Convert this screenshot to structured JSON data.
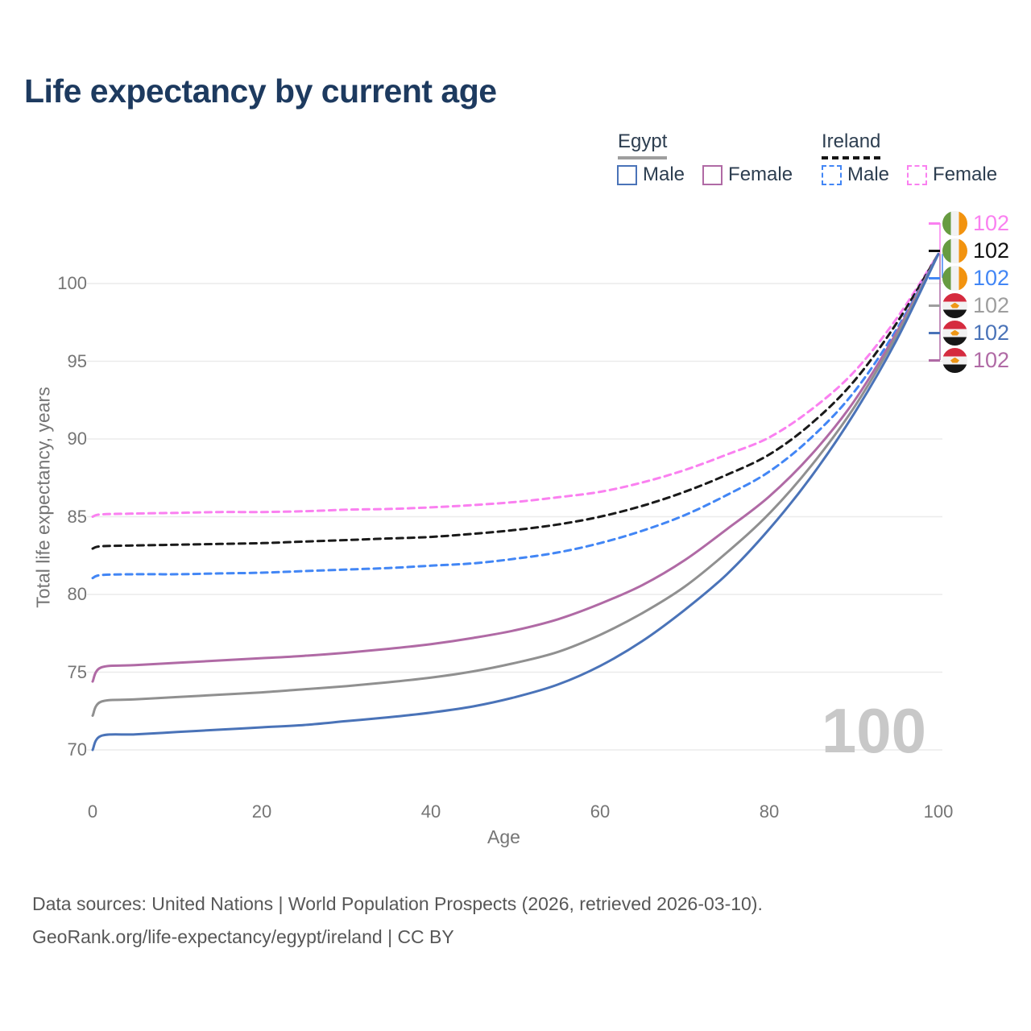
{
  "title": "Life expectancy by current age",
  "watermark": "100",
  "legend": {
    "groups": [
      {
        "country": "Egypt",
        "line_style": "solid",
        "underline_color": "#9e9e9e",
        "items": [
          {
            "label": "Male",
            "color": "#4a73b8"
          },
          {
            "label": "Female",
            "color": "#b06aa5"
          }
        ]
      },
      {
        "country": "Ireland",
        "line_style": "dashed",
        "underline_color": "#161616",
        "items": [
          {
            "label": "Male",
            "color": "#4286f5"
          },
          {
            "label": "Female",
            "color": "#fa80f0"
          }
        ]
      }
    ]
  },
  "chart_data": {
    "type": "line",
    "title": "Life expectancy by current age",
    "xlabel": "Age",
    "ylabel": "Total life expectancy, years",
    "x_ticks": [
      0,
      20,
      40,
      60,
      80,
      100
    ],
    "y_ticks": [
      70,
      75,
      80,
      85,
      90,
      95,
      100
    ],
    "xlim": [
      0,
      100
    ],
    "ylim": [
      68.5,
      103.5
    ],
    "grid": "horizontal",
    "legend_position": "top-right",
    "series": [
      {
        "id": "ireland_female",
        "name": "Ireland Female",
        "color": "#fa80f0",
        "dash": true,
        "points": [
          [
            0,
            85.0
          ],
          [
            1,
            85.15
          ],
          [
            5,
            85.2
          ],
          [
            10,
            85.25
          ],
          [
            15,
            85.3
          ],
          [
            20,
            85.3
          ],
          [
            25,
            85.35
          ],
          [
            30,
            85.45
          ],
          [
            35,
            85.5
          ],
          [
            40,
            85.6
          ],
          [
            45,
            85.75
          ],
          [
            50,
            85.95
          ],
          [
            55,
            86.25
          ],
          [
            60,
            86.6
          ],
          [
            65,
            87.2
          ],
          [
            70,
            88.0
          ],
          [
            75,
            89.0
          ],
          [
            80,
            90.1
          ],
          [
            85,
            91.9
          ],
          [
            90,
            94.3
          ],
          [
            95,
            97.7
          ],
          [
            100,
            101.9
          ]
        ]
      },
      {
        "id": "ireland_both",
        "name": "Ireland Both sexes",
        "color": "#1a1a1a",
        "dash": true,
        "points": [
          [
            0,
            82.95
          ],
          [
            1,
            83.1
          ],
          [
            5,
            83.15
          ],
          [
            10,
            83.2
          ],
          [
            15,
            83.25
          ],
          [
            20,
            83.3
          ],
          [
            25,
            83.4
          ],
          [
            30,
            83.5
          ],
          [
            35,
            83.6
          ],
          [
            40,
            83.7
          ],
          [
            45,
            83.9
          ],
          [
            50,
            84.15
          ],
          [
            55,
            84.5
          ],
          [
            60,
            85.0
          ],
          [
            65,
            85.7
          ],
          [
            70,
            86.6
          ],
          [
            75,
            87.7
          ],
          [
            80,
            89.0
          ],
          [
            85,
            91.0
          ],
          [
            90,
            93.7
          ],
          [
            95,
            97.4
          ],
          [
            100,
            101.9
          ]
        ]
      },
      {
        "id": "ireland_male",
        "name": "Ireland Male",
        "color": "#4286f5",
        "dash": true,
        "points": [
          [
            0,
            81.05
          ],
          [
            1,
            81.25
          ],
          [
            5,
            81.3
          ],
          [
            10,
            81.3
          ],
          [
            15,
            81.35
          ],
          [
            20,
            81.4
          ],
          [
            25,
            81.5
          ],
          [
            30,
            81.6
          ],
          [
            35,
            81.7
          ],
          [
            40,
            81.85
          ],
          [
            45,
            82.0
          ],
          [
            50,
            82.3
          ],
          [
            55,
            82.7
          ],
          [
            60,
            83.3
          ],
          [
            65,
            84.1
          ],
          [
            70,
            85.1
          ],
          [
            75,
            86.4
          ],
          [
            80,
            87.9
          ],
          [
            85,
            90.1
          ],
          [
            90,
            93.0
          ],
          [
            95,
            97.0
          ],
          [
            100,
            101.9
          ]
        ]
      },
      {
        "id": "egypt_female",
        "name": "Egypt Female",
        "color": "#b06aa5",
        "dash": false,
        "points": [
          [
            0,
            74.4
          ],
          [
            1,
            75.3
          ],
          [
            5,
            75.45
          ],
          [
            10,
            75.6
          ],
          [
            15,
            75.75
          ],
          [
            20,
            75.9
          ],
          [
            25,
            76.05
          ],
          [
            30,
            76.25
          ],
          [
            35,
            76.5
          ],
          [
            40,
            76.8
          ],
          [
            45,
            77.2
          ],
          [
            50,
            77.7
          ],
          [
            55,
            78.4
          ],
          [
            60,
            79.4
          ],
          [
            65,
            80.6
          ],
          [
            70,
            82.2
          ],
          [
            75,
            84.2
          ],
          [
            80,
            86.3
          ],
          [
            85,
            89.0
          ],
          [
            90,
            92.4
          ],
          [
            95,
            96.8
          ],
          [
            100,
            101.9
          ]
        ]
      },
      {
        "id": "egypt_both",
        "name": "Egypt Both sexes",
        "color": "#909090",
        "dash": false,
        "points": [
          [
            0,
            72.2
          ],
          [
            1,
            73.1
          ],
          [
            5,
            73.25
          ],
          [
            10,
            73.4
          ],
          [
            15,
            73.55
          ],
          [
            20,
            73.7
          ],
          [
            25,
            73.9
          ],
          [
            30,
            74.1
          ],
          [
            35,
            74.35
          ],
          [
            40,
            74.65
          ],
          [
            45,
            75.05
          ],
          [
            50,
            75.6
          ],
          [
            55,
            76.3
          ],
          [
            60,
            77.4
          ],
          [
            65,
            78.8
          ],
          [
            70,
            80.5
          ],
          [
            75,
            82.7
          ],
          [
            80,
            85.2
          ],
          [
            85,
            88.3
          ],
          [
            90,
            92.0
          ],
          [
            95,
            96.6
          ],
          [
            100,
            101.9
          ]
        ]
      },
      {
        "id": "egypt_male",
        "name": "Egypt Male",
        "color": "#4a73b8",
        "dash": false,
        "points": [
          [
            0,
            70.0
          ],
          [
            1,
            70.9
          ],
          [
            5,
            71.0
          ],
          [
            10,
            71.15
          ],
          [
            15,
            71.3
          ],
          [
            20,
            71.45
          ],
          [
            25,
            71.6
          ],
          [
            30,
            71.85
          ],
          [
            35,
            72.1
          ],
          [
            40,
            72.4
          ],
          [
            45,
            72.8
          ],
          [
            50,
            73.4
          ],
          [
            55,
            74.2
          ],
          [
            60,
            75.4
          ],
          [
            65,
            77.0
          ],
          [
            70,
            79.0
          ],
          [
            75,
            81.3
          ],
          [
            80,
            84.2
          ],
          [
            85,
            87.6
          ],
          [
            90,
            91.6
          ],
          [
            95,
            96.3
          ],
          [
            100,
            101.9
          ]
        ]
      }
    ],
    "end_labels": [
      {
        "series": "Ireland Female",
        "value": "102",
        "color": "#fa80f0",
        "flag": "ireland"
      },
      {
        "series": "Ireland Both sexes",
        "value": "102",
        "color": "#111111",
        "flag": "ireland"
      },
      {
        "series": "Ireland Male",
        "value": "102",
        "color": "#4286f5",
        "flag": "ireland"
      },
      {
        "series": "Egypt Both sexes",
        "value": "102",
        "color": "#9e9e9e",
        "flag": "egypt"
      },
      {
        "series": "Egypt Male",
        "value": "102",
        "color": "#4a73b8",
        "flag": "egypt"
      },
      {
        "series": "Egypt Female",
        "value": "102",
        "color": "#b06aa5",
        "flag": "egypt"
      }
    ]
  },
  "flags": {
    "ireland": {
      "bands": "vertical",
      "colors": [
        "#679b41",
        "#f2f2f2",
        "#f2930f"
      ]
    },
    "egypt": {
      "bands": "horizontal",
      "colors": [
        "#d52b3f",
        "#f2f2f2",
        "#161616"
      ],
      "emblem": "#ef9716"
    }
  },
  "footer": {
    "line1": "Data sources: United Nations | World Population Prospects (2026, retrieved 2026-03-10).",
    "line2": "GeoRank.org/life-expectancy/egypt/ireland | CC BY"
  }
}
